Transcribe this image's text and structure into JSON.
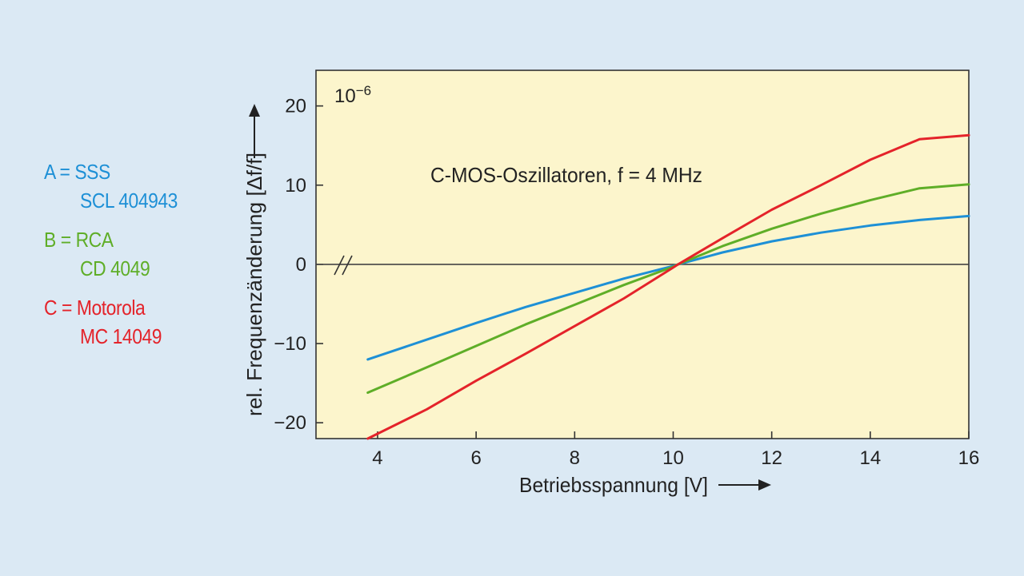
{
  "legend": [
    {
      "key": "A",
      "eq": "A = SSS",
      "detail": "SCL 404943",
      "color": "#1e90d6"
    },
    {
      "key": "B",
      "eq": "B = RCA",
      "detail": "CD 4049",
      "color": "#5fae28"
    },
    {
      "key": "C",
      "eq": "C = Motorola",
      "detail": "MC 14049",
      "color": "#e4232a"
    }
  ],
  "chart_data": {
    "type": "line",
    "title": "C-MOS-Oszillatoren, f = 4 MHz",
    "xlabel": "Betriebsspannung [V]",
    "ylabel": "rel. Frequenzänderung [Δf/f]",
    "y_unit": "10",
    "y_unit_exp": "−6",
    "xlim": [
      2.75,
      16
    ],
    "ylim": [
      -22,
      24.5
    ],
    "x_ticks": [
      4,
      6,
      8,
      10,
      12,
      14,
      16
    ],
    "y_ticks": [
      20,
      10,
      0,
      -10,
      -20
    ],
    "y_tick_labels": [
      "20",
      "10",
      "0",
      "−10",
      "−20"
    ],
    "x_tick_labels": [
      "4",
      "6",
      "8",
      "10",
      "12",
      "14",
      "16"
    ],
    "plot_background": "#fcf5cc",
    "series": [
      {
        "name": "A",
        "color": "#1e90d6",
        "x": [
          3.8,
          5,
          6,
          7,
          8,
          9,
          10,
          10.1,
          11,
          12,
          13,
          14,
          15,
          16
        ],
        "y": [
          -12.0,
          -9.5,
          -7.4,
          -5.4,
          -3.6,
          -1.8,
          -0.2,
          0.0,
          1.5,
          2.9,
          4.0,
          4.9,
          5.6,
          6.1
        ]
      },
      {
        "name": "B",
        "color": "#5fae28",
        "x": [
          3.8,
          5,
          6,
          7,
          8,
          9,
          10,
          10.1,
          11,
          12,
          13,
          14,
          15,
          16
        ],
        "y": [
          -16.2,
          -13.0,
          -10.3,
          -7.6,
          -5.1,
          -2.6,
          -0.3,
          0.0,
          2.3,
          4.5,
          6.4,
          8.1,
          9.6,
          10.1
        ]
      },
      {
        "name": "C",
        "color": "#e4232a",
        "x": [
          3.8,
          5,
          6,
          7,
          8,
          9,
          10,
          10.1,
          11,
          12,
          13,
          14,
          15,
          16
        ],
        "y": [
          -22.0,
          -18.3,
          -14.7,
          -11.3,
          -7.8,
          -4.3,
          -0.4,
          0.0,
          3.3,
          6.9,
          10.0,
          13.2,
          15.8,
          16.3
        ]
      }
    ]
  }
}
